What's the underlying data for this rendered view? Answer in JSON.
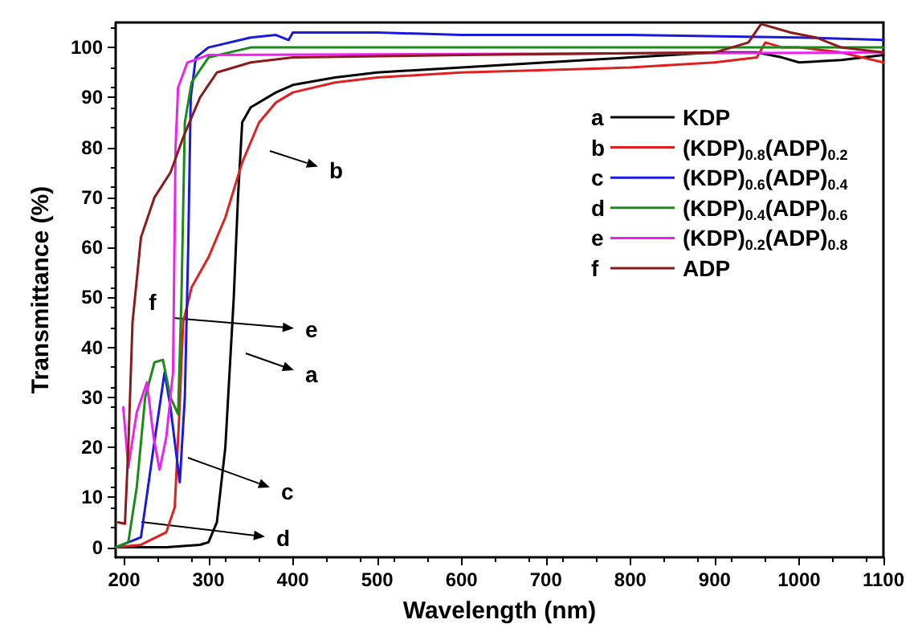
{
  "chart_data": {
    "type": "line",
    "xlabel": "Wavelength (nm)",
    "ylabel": "Transmittance (%)",
    "xlim": [
      190,
      1100
    ],
    "ylim": [
      -2,
      105
    ],
    "xticks": [
      200,
      300,
      400,
      500,
      600,
      700,
      800,
      900,
      1000,
      1100
    ],
    "yticks": [
      0,
      10,
      20,
      30,
      40,
      50,
      60,
      70,
      80,
      90,
      100
    ],
    "grid": false,
    "legend": "right",
    "marker": "none",
    "line_style": "solid",
    "series": [
      {
        "name": "KDP",
        "color": "#000000",
        "x": [
          190,
          250,
          290,
          300,
          310,
          320,
          330,
          335,
          340,
          350,
          380,
          400,
          450,
          500,
          600,
          700,
          800,
          900,
          950,
          980,
          1000,
          1050,
          1100
        ],
        "values": [
          0,
          0,
          0.5,
          1,
          5,
          20,
          50,
          70,
          85,
          88,
          91,
          92.5,
          94,
          95,
          96,
          97,
          98,
          99,
          99,
          98,
          97,
          97.5,
          98.5
        ]
      },
      {
        "name": "(KDP)$_{0.8}$(ADP)$_{0.2}$",
        "color": "#e02020",
        "x": [
          190,
          220,
          250,
          260,
          265,
          270,
          280,
          300,
          320,
          340,
          360,
          380,
          400,
          450,
          500,
          600,
          700,
          800,
          900,
          950,
          960,
          980,
          1000,
          1050,
          1100
        ],
        "values": [
          0,
          0.5,
          3,
          8,
          25,
          45,
          52,
          58,
          66,
          77,
          85,
          89,
          91,
          93,
          94,
          95,
          95.5,
          96,
          97,
          98,
          101,
          100,
          100,
          99,
          97
        ]
      },
      {
        "name": "(KDP)$_{0.6}$(ADP)$_{0.4}$",
        "color": "#1a1adb",
        "x": [
          190,
          220,
          235,
          248,
          255,
          266,
          272,
          276,
          279,
          285,
          300,
          350,
          380,
          395,
          400,
          500,
          600,
          800,
          1000,
          1100
        ],
        "values": [
          0,
          2,
          20,
          35,
          28,
          13,
          30,
          60,
          90,
          98,
          100,
          102,
          102.5,
          101.5,
          103,
          103,
          102.5,
          102.5,
          102,
          101.5
        ]
      },
      {
        "name": "(KDP)$_{0.4}$(ADP)$_{0.6}$",
        "color": "#1a8a1a",
        "x": [
          190,
          205,
          215,
          225,
          236,
          246,
          255,
          264,
          268,
          272,
          280,
          300,
          350,
          400,
          1100
        ],
        "values": [
          0,
          1,
          12,
          30,
          37,
          37.5,
          30,
          26.6,
          50,
          85,
          93,
          98,
          100,
          100,
          100
        ]
      },
      {
        "name": "(KDP)$_{0.2}$(ADP)$_{0.8}$",
        "color": "#ee22ee",
        "x": [
          199,
          205,
          215,
          227,
          235,
          242,
          250,
          258,
          261,
          264,
          275,
          300,
          1100
        ],
        "values": [
          28,
          16,
          27,
          33,
          22,
          15.5,
          22,
          35,
          80,
          92,
          97,
          98.5,
          99
        ]
      },
      {
        "name": "ADP",
        "color": "#8b1a1a",
        "x": [
          193,
          201,
          205,
          210,
          220,
          236,
          255,
          270,
          290,
          310,
          350,
          400,
          600,
          900,
          940,
          955,
          990,
          1020,
          1050,
          1100
        ],
        "values": [
          5,
          4.7,
          20,
          45,
          62,
          70,
          75,
          82,
          90,
          95,
          97,
          98,
          98.5,
          99,
          101,
          104.7,
          103,
          102,
          100,
          99
        ]
      }
    ],
    "annotations": [
      "a",
      "b",
      "c",
      "d",
      "e",
      "f"
    ]
  }
}
